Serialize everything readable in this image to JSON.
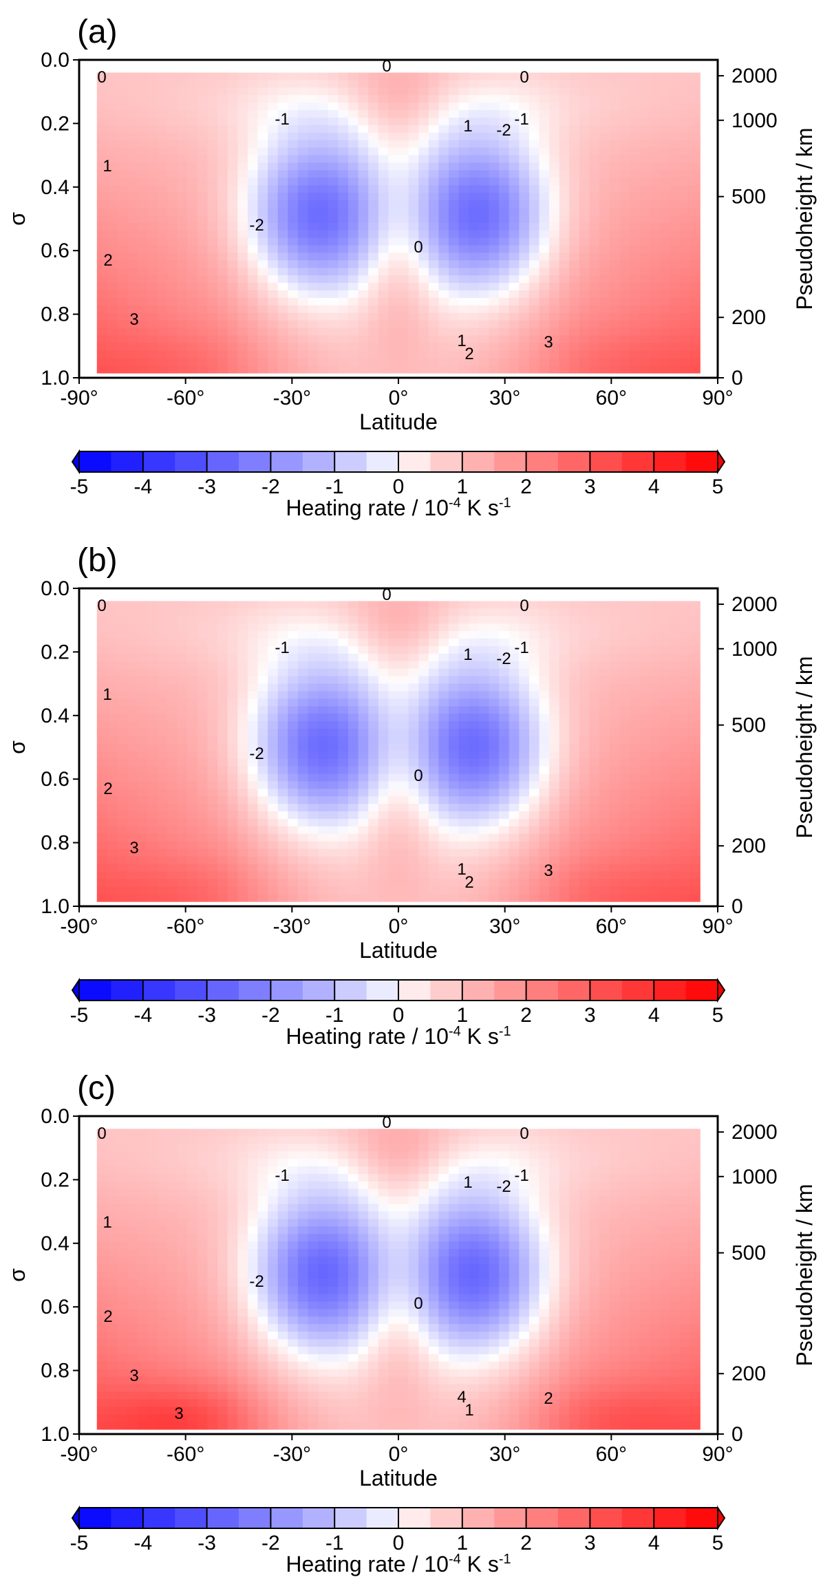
{
  "chart_data": [
    {
      "type": "heatmap",
      "panel_label": "(a)",
      "xlabel": "Latitude",
      "ylabel": "σ",
      "ylabel_right": "Pseudoheight / km",
      "xticks": [
        "-90°",
        "-60°",
        "-30°",
        "0°",
        "30°",
        "60°",
        "90°"
      ],
      "xtick_values": [
        -90,
        -60,
        -30,
        0,
        30,
        60,
        90
      ],
      "yticks": [
        "0.0",
        "0.2",
        "0.4",
        "0.6",
        "0.8",
        "1.0"
      ],
      "ytick_values": [
        0.0,
        0.2,
        0.4,
        0.6,
        0.8,
        1.0
      ],
      "yticks_right": [
        "2000",
        "1000",
        "500",
        "200",
        "0"
      ],
      "ytick_right_sigma": [
        0.05,
        0.19,
        0.43,
        0.81,
        1.0
      ],
      "xlim": [
        -90,
        90
      ],
      "ylim": [
        1.0,
        0.0
      ],
      "colorbar": {
        "ticks": [
          "-5",
          "-4",
          "-3",
          "-2",
          "-1",
          "0",
          "1",
          "2",
          "3",
          "4",
          "5"
        ],
        "title": "Heating rate / 10",
        "title_exp": "-4",
        "title_tail": " K s",
        "title_exp2": "-1",
        "range": [
          -5,
          5
        ],
        "low_color": "#0000ff",
        "high_color": "#ff0000"
      },
      "contour_labels": [
        "0",
        "0",
        "0",
        "0",
        "1",
        "-1",
        "-1",
        "-2",
        "-2",
        "1",
        "2",
        "3",
        "1",
        "2",
        "3"
      ],
      "field": {
        "top_center_max": 0.9,
        "cells": [
          {
            "lat": -23,
            "sigma": 0.49,
            "min": -2.6
          },
          {
            "lat": 23,
            "sigma": 0.49,
            "min": -2.6
          }
        ],
        "surface_max": [
          {
            "lat": -60,
            "sigma": 0.96,
            "max": 3.4
          },
          {
            "lat": 60,
            "sigma": 0.96,
            "max": 3.4
          }
        ]
      }
    },
    {
      "type": "heatmap",
      "panel_label": "(b)",
      "xlabel": "Latitude",
      "ylabel": "σ",
      "ylabel_right": "Pseudoheight / km",
      "xticks": [
        "-90°",
        "-60°",
        "-30°",
        "0°",
        "30°",
        "60°",
        "90°"
      ],
      "xtick_values": [
        -90,
        -60,
        -30,
        0,
        30,
        60,
        90
      ],
      "yticks": [
        "0.0",
        "0.2",
        "0.4",
        "0.6",
        "0.8",
        "1.0"
      ],
      "ytick_values": [
        0.0,
        0.2,
        0.4,
        0.6,
        0.8,
        1.0
      ],
      "yticks_right": [
        "2000",
        "1000",
        "500",
        "200",
        "0"
      ],
      "ytick_right_sigma": [
        0.05,
        0.19,
        0.43,
        0.81,
        1.0
      ],
      "xlim": [
        -90,
        90
      ],
      "ylim": [
        1.0,
        0.0
      ],
      "colorbar": {
        "ticks": [
          "-5",
          "-4",
          "-3",
          "-2",
          "-1",
          "0",
          "1",
          "2",
          "3",
          "4",
          "5"
        ],
        "title": "Heating rate / 10",
        "title_exp": "-4",
        "title_tail": " K s",
        "title_exp2": "-1",
        "range": [
          -5,
          5
        ],
        "low_color": "#0000ff",
        "high_color": "#ff0000"
      },
      "contour_labels": [
        "0",
        "0",
        "0",
        "0",
        "1",
        "-1",
        "-1",
        "-2",
        "-2",
        "1",
        "2",
        "3",
        "1",
        "2",
        "3"
      ],
      "field": {
        "top_center_max": 0.9,
        "cells": [
          {
            "lat": -22,
            "sigma": 0.5,
            "min": -2.6
          },
          {
            "lat": 22,
            "sigma": 0.5,
            "min": -2.6
          }
        ],
        "surface_max": [
          {
            "lat": -58,
            "sigma": 0.96,
            "max": 3.5
          },
          {
            "lat": 58,
            "sigma": 0.96,
            "max": 3.5
          }
        ]
      }
    },
    {
      "type": "heatmap",
      "panel_label": "(c)",
      "xlabel": "Latitude",
      "ylabel": "σ",
      "ylabel_right": "Pseudoheight / km",
      "xticks": [
        "-90°",
        "-60°",
        "-30°",
        "0°",
        "30°",
        "60°",
        "90°"
      ],
      "xtick_values": [
        -90,
        -60,
        -30,
        0,
        30,
        60,
        90
      ],
      "yticks": [
        "0.0",
        "0.2",
        "0.4",
        "0.6",
        "0.8",
        "1.0"
      ],
      "ytick_values": [
        0.0,
        0.2,
        0.4,
        0.6,
        0.8,
        1.0
      ],
      "yticks_right": [
        "2000",
        "1000",
        "500",
        "200",
        "0"
      ],
      "ytick_right_sigma": [
        0.05,
        0.19,
        0.43,
        0.81,
        1.0
      ],
      "xlim": [
        -90,
        90
      ],
      "ylim": [
        1.0,
        0.0
      ],
      "colorbar": {
        "ticks": [
          "-5",
          "-4",
          "-3",
          "-2",
          "-1",
          "0",
          "1",
          "2",
          "3",
          "4",
          "5"
        ],
        "title": "Heating rate / 10",
        "title_exp": "-4",
        "title_tail": " K s",
        "title_exp2": "-1",
        "range": [
          -5,
          5
        ],
        "low_color": "#0000ff",
        "high_color": "#ff0000"
      },
      "contour_labels": [
        "0",
        "0",
        "0",
        "0",
        "1",
        "-1",
        "-1",
        "-2",
        "-2",
        "1",
        "2",
        "3",
        "4",
        "1",
        "2",
        "3"
      ],
      "field": {
        "top_center_max": 1.0,
        "cells": [
          {
            "lat": -22,
            "sigma": 0.5,
            "min": -2.7
          },
          {
            "lat": 22,
            "sigma": 0.5,
            "min": -2.7
          }
        ],
        "surface_max": [
          {
            "lat": -60,
            "sigma": 0.96,
            "max": 4.2
          },
          {
            "lat": 60,
            "sigma": 0.96,
            "max": 3.8
          }
        ]
      }
    }
  ]
}
